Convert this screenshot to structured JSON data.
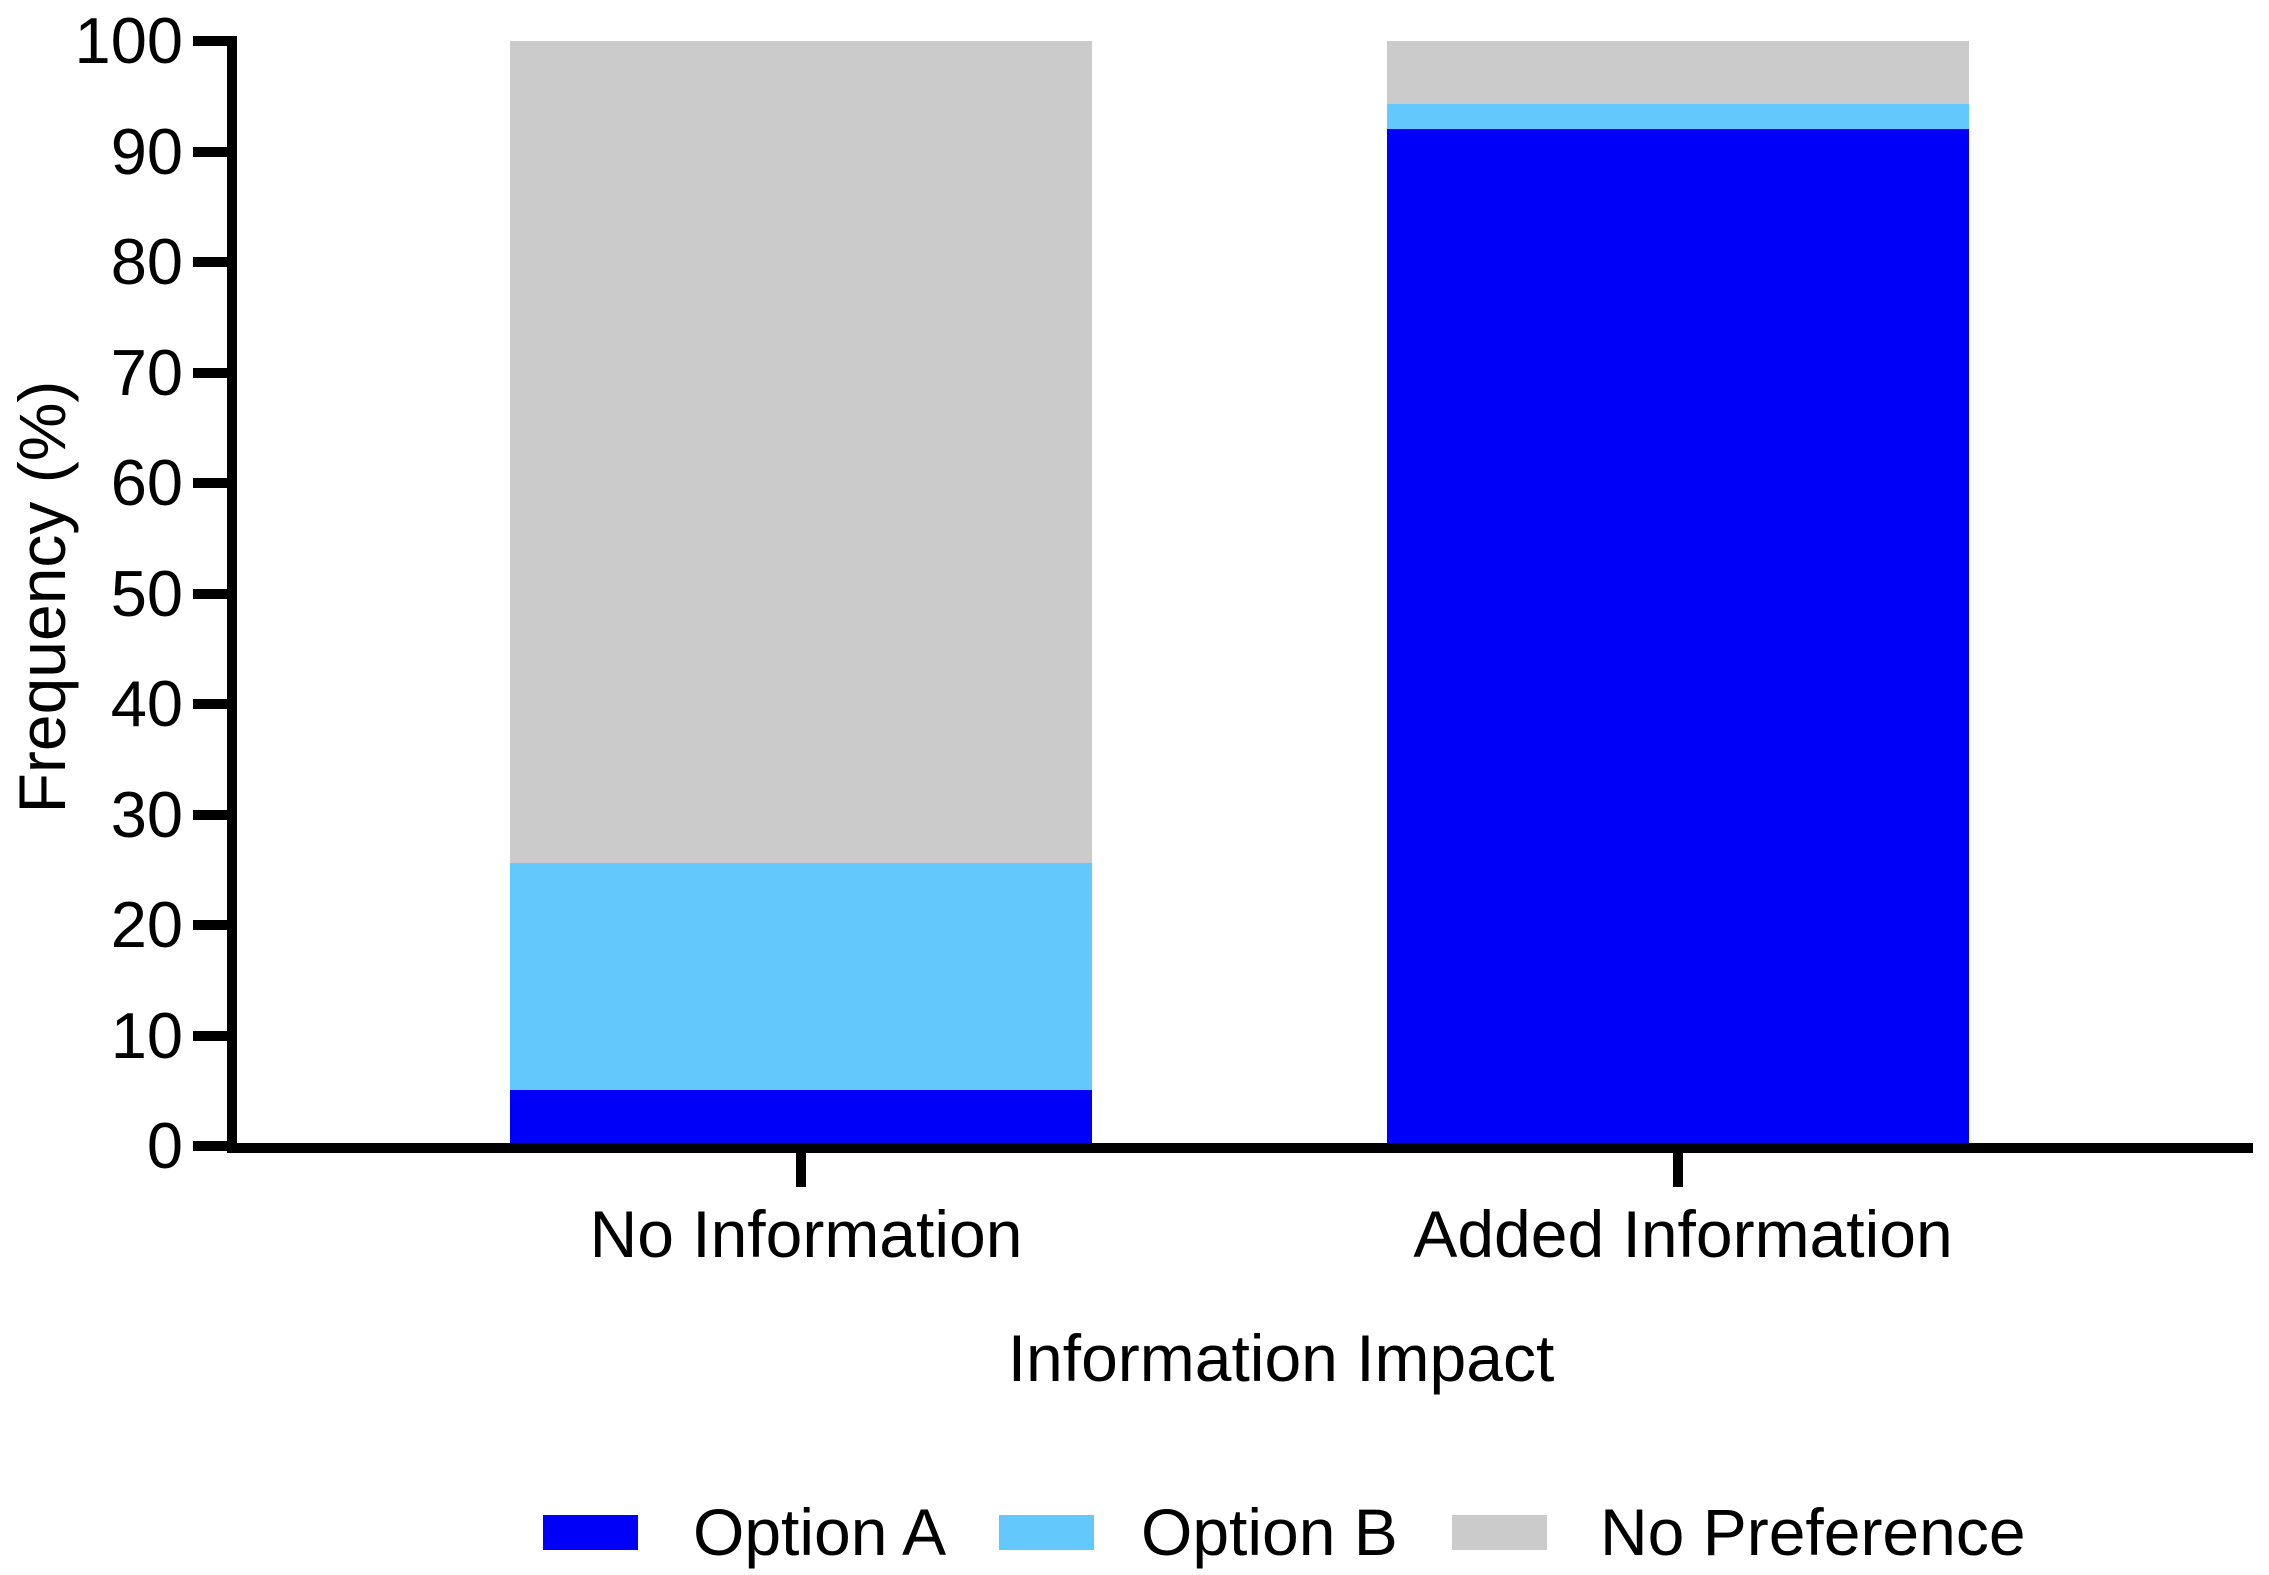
{
  "chart_data": {
    "type": "bar",
    "stacked": true,
    "orientation": "vertical",
    "title": "",
    "xlabel": "Information Impact",
    "ylabel": "Frequency (%)",
    "categories": [
      "No Information",
      "Added Information"
    ],
    "series": [
      {
        "name": "Option A",
        "color": "#0000FA",
        "values": [
          5.1,
          92.0
        ]
      },
      {
        "name": "Option B",
        "color": "#63C9FC",
        "values": [
          20.5,
          2.3
        ]
      },
      {
        "name": "No Preference",
        "color": "#CBCBCB",
        "values": [
          74.4,
          5.7
        ]
      }
    ],
    "ylim": [
      0,
      100
    ],
    "yticks": [
      0,
      10,
      20,
      30,
      40,
      50,
      60,
      70,
      80,
      90,
      100
    ],
    "grid": false,
    "legend_position": "bottom",
    "axis_color": "#000000",
    "background_color": "#FFFFFF"
  }
}
